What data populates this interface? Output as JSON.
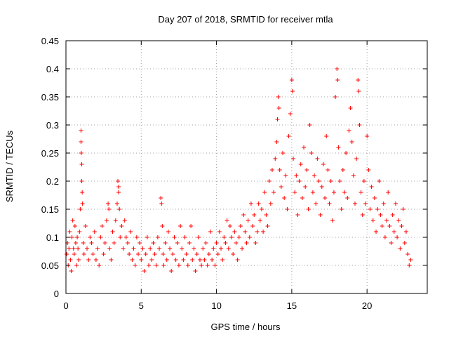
{
  "chart_data": {
    "type": "scatter",
    "title": "Day 207 of 2018, SRMTID for receiver mtla",
    "xlabel": "GPS time / hours",
    "ylabel": "SRMTID / TECUs",
    "xlim": [
      0,
      24
    ],
    "ylim": [
      0,
      0.45
    ],
    "xticks": [
      0,
      5,
      10,
      15,
      20
    ],
    "xtick_labels": [
      "0",
      "5",
      "10",
      "15",
      "20"
    ],
    "yticks": [
      0,
      0.05,
      0.1,
      0.15,
      0.2,
      0.25,
      0.3,
      0.35,
      0.4,
      0.45
    ],
    "ytick_labels": [
      "0",
      "0.05",
      "0.1",
      "0.15",
      "0.2",
      "0.25",
      "0.3",
      "0.35",
      "0.4",
      "0.45"
    ],
    "grid": true,
    "marker": "plus",
    "color": "#ff0000",
    "series": [
      {
        "name": "SRMTID",
        "points": [
          [
            0.05,
            0.07
          ],
          [
            0.1,
            0.09
          ],
          [
            0.15,
            0.05
          ],
          [
            0.2,
            0.08
          ],
          [
            0.25,
            0.11
          ],
          [
            0.3,
            0.06
          ],
          [
            0.35,
            0.04
          ],
          [
            0.4,
            0.1
          ],
          [
            0.45,
            0.13
          ],
          [
            0.5,
            0.08
          ],
          [
            0.55,
            0.07
          ],
          [
            0.6,
            0.12
          ],
          [
            0.65,
            0.09
          ],
          [
            0.7,
            0.05
          ],
          [
            0.75,
            0.1
          ],
          [
            0.8,
            0.08
          ],
          [
            0.85,
            0.06
          ],
          [
            0.9,
            0.11
          ],
          [
            0.95,
            0.15
          ],
          [
            1.0,
            0.29
          ],
          [
            1.0,
            0.27
          ],
          [
            1.02,
            0.25
          ],
          [
            1.05,
            0.23
          ],
          [
            1.05,
            0.2
          ],
          [
            1.08,
            0.18
          ],
          [
            1.1,
            0.16
          ],
          [
            1.15,
            0.09
          ],
          [
            1.2,
            0.07
          ],
          [
            1.3,
            0.12
          ],
          [
            1.4,
            0.08
          ],
          [
            1.5,
            0.06
          ],
          [
            1.6,
            0.1
          ],
          [
            1.7,
            0.09
          ],
          [
            1.8,
            0.07
          ],
          [
            1.9,
            0.11
          ],
          [
            2.0,
            0.06
          ],
          [
            2.1,
            0.08
          ],
          [
            2.2,
            0.05
          ],
          [
            2.3,
            0.1
          ],
          [
            2.4,
            0.12
          ],
          [
            2.5,
            0.07
          ],
          [
            2.6,
            0.09
          ],
          [
            2.7,
            0.13
          ],
          [
            2.8,
            0.16
          ],
          [
            2.85,
            0.15
          ],
          [
            2.9,
            0.08
          ],
          [
            3.0,
            0.06
          ],
          [
            3.1,
            0.11
          ],
          [
            3.2,
            0.09
          ],
          [
            3.3,
            0.13
          ],
          [
            3.4,
            0.16
          ],
          [
            3.45,
            0.2
          ],
          [
            3.5,
            0.18
          ],
          [
            3.5,
            0.19
          ],
          [
            3.55,
            0.15
          ],
          [
            3.6,
            0.1
          ],
          [
            3.7,
            0.12
          ],
          [
            3.8,
            0.08
          ],
          [
            3.9,
            0.13
          ],
          [
            4.0,
            0.1
          ],
          [
            4.1,
            0.09
          ],
          [
            4.2,
            0.07
          ],
          [
            4.3,
            0.11
          ],
          [
            4.4,
            0.06
          ],
          [
            4.5,
            0.08
          ],
          [
            4.6,
            0.05
          ],
          [
            4.7,
            0.1
          ],
          [
            4.8,
            0.07
          ],
          [
            4.9,
            0.09
          ],
          [
            5.0,
            0.06
          ],
          [
            5.1,
            0.08
          ],
          [
            5.2,
            0.04
          ],
          [
            5.3,
            0.07
          ],
          [
            5.4,
            0.1
          ],
          [
            5.5,
            0.05
          ],
          [
            5.6,
            0.08
          ],
          [
            5.7,
            0.06
          ],
          [
            5.8,
            0.09
          ],
          [
            5.9,
            0.07
          ],
          [
            6.0,
            0.05
          ],
          [
            6.1,
            0.1
          ],
          [
            6.2,
            0.08
          ],
          [
            6.3,
            0.17
          ],
          [
            6.35,
            0.16
          ],
          [
            6.4,
            0.12
          ],
          [
            6.45,
            0.07
          ],
          [
            6.5,
            0.05
          ],
          [
            6.6,
            0.09
          ],
          [
            6.7,
            0.06
          ],
          [
            6.8,
            0.11
          ],
          [
            6.9,
            0.08
          ],
          [
            7.0,
            0.04
          ],
          [
            7.1,
            0.07
          ],
          [
            7.2,
            0.1
          ],
          [
            7.3,
            0.06
          ],
          [
            7.4,
            0.09
          ],
          [
            7.5,
            0.05
          ],
          [
            7.6,
            0.12
          ],
          [
            7.7,
            0.08
          ],
          [
            7.8,
            0.06
          ],
          [
            7.9,
            0.1
          ],
          [
            8.0,
            0.07
          ],
          [
            8.1,
            0.05
          ],
          [
            8.2,
            0.09
          ],
          [
            8.3,
            0.12
          ],
          [
            8.4,
            0.06
          ],
          [
            8.5,
            0.08
          ],
          [
            8.6,
            0.04
          ],
          [
            8.7,
            0.07
          ],
          [
            8.8,
            0.1
          ],
          [
            8.9,
            0.06
          ],
          [
            9.0,
            0.05
          ],
          [
            9.1,
            0.08
          ],
          [
            9.2,
            0.06
          ],
          [
            9.3,
            0.09
          ],
          [
            9.4,
            0.05
          ],
          [
            9.5,
            0.07
          ],
          [
            9.6,
            0.11
          ],
          [
            9.7,
            0.06
          ],
          [
            9.8,
            0.08
          ],
          [
            9.9,
            0.05
          ],
          [
            10.0,
            0.09
          ],
          [
            10.1,
            0.07
          ],
          [
            10.2,
            0.11
          ],
          [
            10.3,
            0.08
          ],
          [
            10.4,
            0.06
          ],
          [
            10.5,
            0.1
          ],
          [
            10.6,
            0.09
          ],
          [
            10.7,
            0.13
          ],
          [
            10.8,
            0.08
          ],
          [
            10.9,
            0.12
          ],
          [
            11.0,
            0.1
          ],
          [
            11.1,
            0.07
          ],
          [
            11.2,
            0.11
          ],
          [
            11.3,
            0.09
          ],
          [
            11.4,
            0.06
          ],
          [
            11.5,
            0.1
          ],
          [
            11.6,
            0.12
          ],
          [
            11.7,
            0.08
          ],
          [
            11.8,
            0.14
          ],
          [
            11.9,
            0.11
          ],
          [
            12.0,
            0.09
          ],
          [
            12.1,
            0.13
          ],
          [
            12.2,
            0.1
          ],
          [
            12.3,
            0.16
          ],
          [
            12.4,
            0.12
          ],
          [
            12.5,
            0.14
          ],
          [
            12.6,
            0.09
          ],
          [
            12.7,
            0.11
          ],
          [
            12.8,
            0.16
          ],
          [
            12.9,
            0.13
          ],
          [
            13.0,
            0.15
          ],
          [
            13.1,
            0.11
          ],
          [
            13.2,
            0.18
          ],
          [
            13.3,
            0.14
          ],
          [
            13.4,
            0.12
          ],
          [
            13.5,
            0.2
          ],
          [
            13.6,
            0.16
          ],
          [
            13.7,
            0.22
          ],
          [
            13.8,
            0.18
          ],
          [
            13.9,
            0.24
          ],
          [
            14.0,
            0.27
          ],
          [
            14.05,
            0.31
          ],
          [
            14.1,
            0.35
          ],
          [
            14.15,
            0.33
          ],
          [
            14.2,
            0.22
          ],
          [
            14.3,
            0.19
          ],
          [
            14.4,
            0.25
          ],
          [
            14.5,
            0.17
          ],
          [
            14.6,
            0.21
          ],
          [
            14.7,
            0.15
          ],
          [
            14.8,
            0.28
          ],
          [
            14.9,
            0.32
          ],
          [
            15.0,
            0.38
          ],
          [
            15.05,
            0.36
          ],
          [
            15.1,
            0.24
          ],
          [
            15.2,
            0.18
          ],
          [
            15.3,
            0.21
          ],
          [
            15.4,
            0.14
          ],
          [
            15.5,
            0.2
          ],
          [
            15.6,
            0.23
          ],
          [
            15.7,
            0.17
          ],
          [
            15.8,
            0.26
          ],
          [
            15.9,
            0.19
          ],
          [
            16.0,
            0.22
          ],
          [
            16.1,
            0.15
          ],
          [
            16.2,
            0.3
          ],
          [
            16.3,
            0.25
          ],
          [
            16.4,
            0.18
          ],
          [
            16.5,
            0.21
          ],
          [
            16.6,
            0.16
          ],
          [
            16.7,
            0.24
          ],
          [
            16.8,
            0.2
          ],
          [
            16.9,
            0.14
          ],
          [
            17.0,
            0.19
          ],
          [
            17.1,
            0.23
          ],
          [
            17.2,
            0.17
          ],
          [
            17.3,
            0.28
          ],
          [
            17.4,
            0.22
          ],
          [
            17.5,
            0.16
          ],
          [
            17.6,
            0.2
          ],
          [
            17.7,
            0.13
          ],
          [
            17.8,
            0.18
          ],
          [
            17.9,
            0.35
          ],
          [
            18.0,
            0.4
          ],
          [
            18.05,
            0.38
          ],
          [
            18.1,
            0.26
          ],
          [
            18.2,
            0.2
          ],
          [
            18.3,
            0.15
          ],
          [
            18.4,
            0.22
          ],
          [
            18.5,
            0.18
          ],
          [
            18.6,
            0.25
          ],
          [
            18.7,
            0.17
          ],
          [
            18.8,
            0.29
          ],
          [
            18.9,
            0.33
          ],
          [
            19.0,
            0.27
          ],
          [
            19.1,
            0.21
          ],
          [
            19.2,
            0.16
          ],
          [
            19.3,
            0.24
          ],
          [
            19.4,
            0.38
          ],
          [
            19.45,
            0.36
          ],
          [
            19.5,
            0.3
          ],
          [
            19.6,
            0.18
          ],
          [
            19.7,
            0.14
          ],
          [
            19.8,
            0.2
          ],
          [
            19.9,
            0.16
          ],
          [
            20.0,
            0.28
          ],
          [
            20.1,
            0.22
          ],
          [
            20.2,
            0.15
          ],
          [
            20.3,
            0.19
          ],
          [
            20.4,
            0.13
          ],
          [
            20.5,
            0.17
          ],
          [
            20.6,
            0.11
          ],
          [
            20.7,
            0.15
          ],
          [
            20.8,
            0.2
          ],
          [
            20.9,
            0.14
          ],
          [
            21.0,
            0.12
          ],
          [
            21.1,
            0.16
          ],
          [
            21.2,
            0.1
          ],
          [
            21.3,
            0.13
          ],
          [
            21.4,
            0.18
          ],
          [
            21.5,
            0.12
          ],
          [
            21.6,
            0.09
          ],
          [
            21.7,
            0.14
          ],
          [
            21.8,
            0.11
          ],
          [
            21.9,
            0.16
          ],
          [
            22.0,
            0.1
          ],
          [
            22.1,
            0.13
          ],
          [
            22.2,
            0.08
          ],
          [
            22.3,
            0.12
          ],
          [
            22.4,
            0.15
          ],
          [
            22.5,
            0.09
          ],
          [
            22.6,
            0.11
          ],
          [
            22.7,
            0.07
          ],
          [
            22.8,
            0.05
          ],
          [
            22.9,
            0.06
          ]
        ]
      }
    ]
  }
}
